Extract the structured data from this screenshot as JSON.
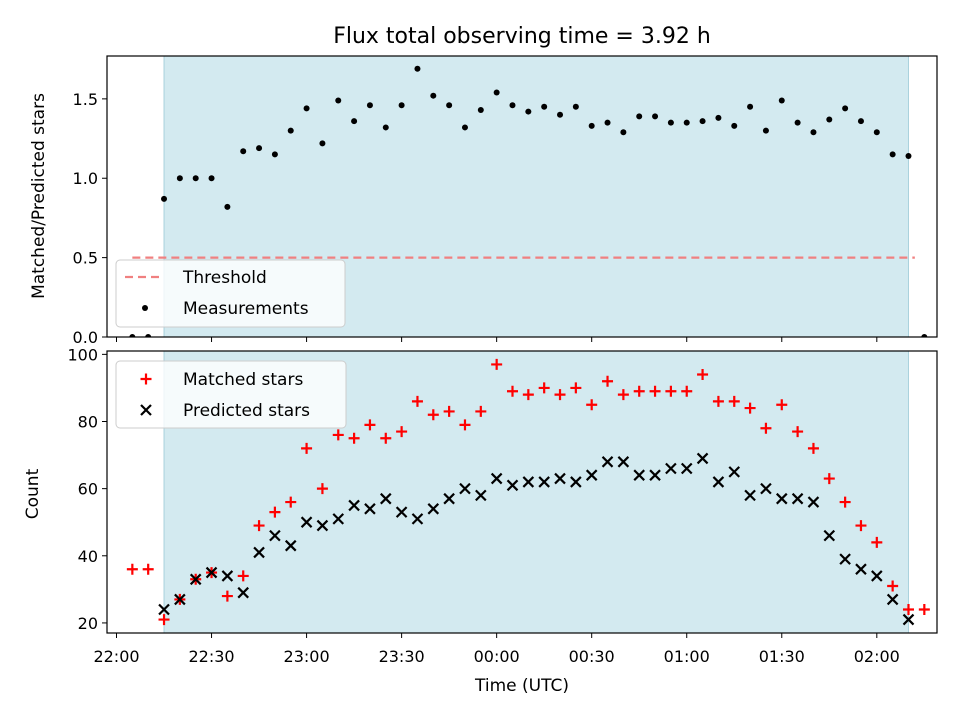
{
  "chart_data": {
    "type": "scatter",
    "title": "Flux total observing time = 3.92 h",
    "x_unit": "time (UTC, night starting 22:00)",
    "xlabel": "Time (UTC)",
    "x_tick_labels": [
      "22:00",
      "22:30",
      "23:00",
      "23:30",
      "00:00",
      "00:30",
      "01:00",
      "01:30",
      "02:00"
    ],
    "shaded_interval": [
      "22:15",
      "02:10"
    ],
    "shade_color": "#d3eaf0",
    "x_range": [
      "21:57",
      "02:19"
    ],
    "top": {
      "ylabel": "Matched/Predicted stars",
      "ylim": [
        0,
        1.77
      ],
      "y_ticks": [
        0.0,
        0.5,
        1.0,
        1.5
      ],
      "y_tick_labels": [
        "0.0",
        "0.5",
        "1.0",
        "1.5"
      ],
      "threshold": {
        "name": "Threshold",
        "value": 0.5,
        "x_range": [
          "22:05",
          "02:12"
        ],
        "color": "#f08080"
      },
      "series": [
        {
          "name": "Measurements",
          "color": "#000000",
          "x": [
            "22:05",
            "22:10",
            "22:15",
            "22:20",
            "22:25",
            "22:30",
            "22:35",
            "22:40",
            "22:45",
            "22:50",
            "22:55",
            "23:00",
            "23:05",
            "23:10",
            "23:15",
            "23:20",
            "23:25",
            "23:30",
            "23:35",
            "23:40",
            "23:45",
            "23:50",
            "23:55",
            "00:00",
            "00:05",
            "00:10",
            "00:15",
            "00:20",
            "00:25",
            "00:30",
            "00:35",
            "00:40",
            "00:45",
            "00:50",
            "00:55",
            "01:00",
            "01:05",
            "01:10",
            "01:15",
            "01:20",
            "01:25",
            "01:30",
            "01:35",
            "01:40",
            "01:45",
            "01:50",
            "01:55",
            "02:00",
            "02:05",
            "02:10",
            "02:15"
          ],
          "y": [
            0.0,
            0.0,
            0.87,
            1.0,
            1.0,
            1.0,
            0.82,
            1.17,
            1.19,
            1.15,
            1.3,
            1.44,
            1.22,
            1.49,
            1.36,
            1.46,
            1.32,
            1.46,
            1.69,
            1.52,
            1.46,
            1.32,
            1.43,
            1.54,
            1.46,
            1.42,
            1.45,
            1.4,
            1.45,
            1.33,
            1.35,
            1.29,
            1.39,
            1.39,
            1.35,
            1.35,
            1.36,
            1.38,
            1.33,
            1.45,
            1.3,
            1.49,
            1.35,
            1.29,
            1.37,
            1.44,
            1.36,
            1.29,
            1.15,
            1.14,
            0.0
          ]
        }
      ],
      "legend_loc": "lower left"
    },
    "bottom": {
      "ylabel": "Count",
      "ylim": [
        17,
        101
      ],
      "y_ticks": [
        20,
        40,
        60,
        80,
        100
      ],
      "y_tick_labels": [
        "20",
        "40",
        "60",
        "80",
        "100"
      ],
      "series": [
        {
          "name": "Matched stars",
          "marker": "+",
          "color": "#ff0000",
          "x": [
            "22:05",
            "22:10",
            "22:15",
            "22:20",
            "22:25",
            "22:30",
            "22:35",
            "22:40",
            "22:45",
            "22:50",
            "22:55",
            "23:00",
            "23:05",
            "23:10",
            "23:15",
            "23:20",
            "23:25",
            "23:30",
            "23:35",
            "23:40",
            "23:45",
            "23:50",
            "23:55",
            "00:00",
            "00:05",
            "00:10",
            "00:15",
            "00:20",
            "00:25",
            "00:30",
            "00:35",
            "00:40",
            "00:45",
            "00:50",
            "00:55",
            "01:00",
            "01:05",
            "01:10",
            "01:15",
            "01:20",
            "01:25",
            "01:30",
            "01:35",
            "01:40",
            "01:45",
            "01:50",
            "01:55",
            "02:00",
            "02:05",
            "02:10",
            "02:15"
          ],
          "y": [
            36,
            36,
            21,
            27,
            33,
            35,
            28,
            34,
            49,
            53,
            56,
            72,
            60,
            76,
            75,
            79,
            75,
            77,
            86,
            82,
            83,
            79,
            83,
            97,
            89,
            88,
            90,
            88,
            90,
            85,
            92,
            88,
            89,
            89,
            89,
            89,
            94,
            86,
            86,
            84,
            78,
            85,
            77,
            72,
            63,
            56,
            49,
            44,
            31,
            24,
            24
          ]
        },
        {
          "name": "Predicted stars",
          "marker": "x",
          "color": "#000000",
          "x": [
            "22:15",
            "22:20",
            "22:25",
            "22:30",
            "22:35",
            "22:40",
            "22:45",
            "22:50",
            "22:55",
            "23:00",
            "23:05",
            "23:10",
            "23:15",
            "23:20",
            "23:25",
            "23:30",
            "23:35",
            "23:40",
            "23:45",
            "23:50",
            "23:55",
            "00:00",
            "00:05",
            "00:10",
            "00:15",
            "00:20",
            "00:25",
            "00:30",
            "00:35",
            "00:40",
            "00:45",
            "00:50",
            "00:55",
            "01:00",
            "01:05",
            "01:10",
            "01:15",
            "01:20",
            "01:25",
            "01:30",
            "01:35",
            "01:40",
            "01:45",
            "01:50",
            "01:55",
            "02:00",
            "02:05",
            "02:10"
          ],
          "y": [
            24,
            27,
            33,
            35,
            34,
            29,
            41,
            46,
            43,
            50,
            49,
            51,
            55,
            54,
            57,
            53,
            51,
            54,
            57,
            60,
            58,
            63,
            61,
            62,
            62,
            63,
            62,
            64,
            68,
            68,
            64,
            64,
            66,
            66,
            69,
            62,
            65,
            58,
            60,
            57,
            57,
            56,
            46,
            39,
            36,
            34,
            27,
            21
          ]
        }
      ],
      "legend_loc": "upper left"
    }
  }
}
